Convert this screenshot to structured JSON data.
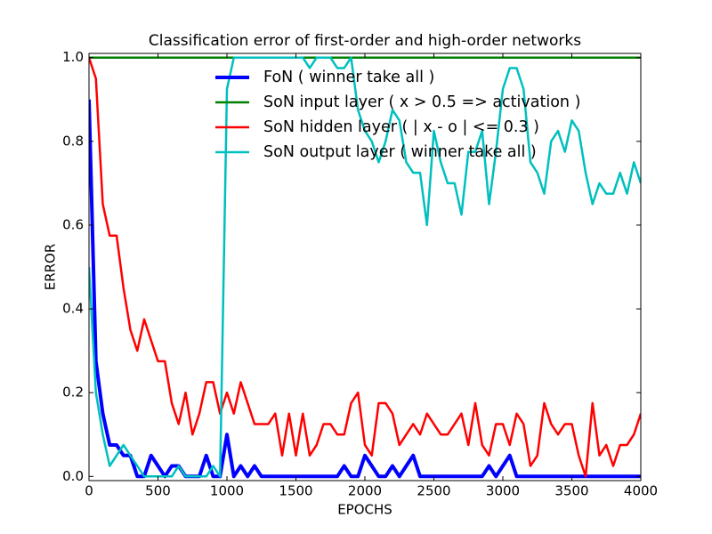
{
  "chart_data": {
    "type": "line",
    "title": "Classification error of first-order and high-order networks",
    "x_label": "EPOCHS",
    "y_label": "ERROR",
    "xlim": [
      0,
      4000
    ],
    "ylim": [
      -0.01,
      1.01
    ],
    "xticks": [
      0,
      500,
      1000,
      1500,
      2000,
      2500,
      3000,
      3500,
      4000
    ],
    "yticks": [
      {
        "value": 0,
        "label": "0.0"
      },
      0.2,
      0.4,
      0.6,
      0.8,
      {
        "value": 1,
        "label": "1.0"
      }
    ],
    "legend_position": "upper right",
    "x": [
      0,
      50,
      100,
      150,
      200,
      250,
      300,
      350,
      400,
      450,
      500,
      550,
      600,
      650,
      700,
      750,
      800,
      850,
      900,
      950,
      1000,
      1050,
      1100,
      1150,
      1200,
      1250,
      1300,
      1350,
      1400,
      1450,
      1500,
      1550,
      1600,
      1650,
      1700,
      1750,
      1800,
      1850,
      1900,
      1950,
      2000,
      2050,
      2100,
      2150,
      2200,
      2250,
      2300,
      2350,
      2400,
      2450,
      2500,
      2550,
      2600,
      2650,
      2700,
      2750,
      2800,
      2850,
      2900,
      2950,
      3000,
      3050,
      3100,
      3150,
      3200,
      3250,
      3300,
      3350,
      3400,
      3450,
      3500,
      3550,
      3600,
      3650,
      3700,
      3750,
      3800,
      3850,
      3900,
      3950,
      4000
    ],
    "series": [
      {
        "name": "FoN ( winner take all )",
        "color": "#0000ff",
        "width": 4,
        "values": [
          0.9,
          0.275,
          0.15,
          0.075,
          0.075,
          0.05,
          0.05,
          0,
          0,
          0.05,
          0.025,
          0,
          0.025,
          0.025,
          0,
          0,
          0,
          0.05,
          0,
          0,
          0.1,
          0,
          0.025,
          0,
          0.025,
          0,
          0,
          0,
          0,
          0,
          0,
          0,
          0,
          0,
          0,
          0,
          0,
          0.025,
          0,
          0,
          0.05,
          0.025,
          0,
          0,
          0.025,
          0,
          0.025,
          0.05,
          0,
          0,
          0,
          0,
          0,
          0,
          0,
          0,
          0,
          0,
          0.025,
          0,
          0.025,
          0.05,
          0,
          0,
          0,
          0,
          0,
          0,
          0,
          0,
          0,
          0,
          0,
          0,
          0,
          0,
          0,
          0,
          0,
          0,
          0
        ]
      },
      {
        "name": "SoN input layer ( x > 0.5 => activation )",
        "color": "#008000",
        "width": 2.5,
        "values": [
          1,
          1,
          1,
          1,
          1,
          1,
          1,
          1,
          1,
          1,
          1,
          1,
          1,
          1,
          1,
          1,
          1,
          1,
          1,
          1,
          1,
          1,
          1,
          1,
          1,
          1,
          1,
          1,
          1,
          1,
          1,
          1,
          1,
          1,
          1,
          1,
          1,
          1,
          1,
          1,
          1,
          1,
          1,
          1,
          1,
          1,
          1,
          1,
          1,
          1,
          1,
          1,
          1,
          1,
          1,
          1,
          1,
          1,
          1,
          1,
          1,
          1,
          1,
          1,
          1,
          1,
          1,
          1,
          1,
          1,
          1,
          1,
          1,
          1,
          1,
          1,
          1,
          1,
          1,
          1,
          1
        ]
      },
      {
        "name": "SoN hidden layer ( | x - o | <= 0.3 )",
        "color": "#ff0000",
        "width": 2.5,
        "values": [
          1.0,
          0.95,
          0.65,
          0.575,
          0.575,
          0.45,
          0.35,
          0.3,
          0.375,
          0.325,
          0.275,
          0.275,
          0.175,
          0.125,
          0.2,
          0.1,
          0.15,
          0.225,
          0.225,
          0.15,
          0.2,
          0.15,
          0.225,
          0.175,
          0.125,
          0.125,
          0.125,
          0.15,
          0.05,
          0.15,
          0.05,
          0.15,
          0.05,
          0.075,
          0.125,
          0.125,
          0.1,
          0.1,
          0.175,
          0.2,
          0.075,
          0.05,
          0.175,
          0.175,
          0.15,
          0.075,
          0.1,
          0.125,
          0.1,
          0.15,
          0.125,
          0.1,
          0.1,
          0.125,
          0.15,
          0.075,
          0.175,
          0.075,
          0.05,
          0.125,
          0.125,
          0.075,
          0.15,
          0.125,
          0.025,
          0.05,
          0.175,
          0.125,
          0.1,
          0.125,
          0.125,
          0.05,
          0,
          0.175,
          0.05,
          0.075,
          0.025,
          0.075,
          0.075,
          0.1,
          0.15
        ]
      },
      {
        "name": "SoN output layer ( winner take all )",
        "color": "#00bfbf",
        "width": 2.5,
        "values": [
          0.5,
          0.2,
          0.1,
          0.025,
          0.05,
          0.075,
          0.05,
          0.025,
          0,
          0,
          0,
          0,
          0,
          0.025,
          0,
          0,
          0,
          0,
          0.025,
          0,
          0.925,
          1,
          1,
          1,
          1,
          1,
          1,
          1,
          1,
          1,
          1,
          1,
          0.975,
          1,
          1,
          1,
          0.975,
          0.975,
          1,
          0.875,
          0.825,
          0.8,
          0.75,
          0.8,
          0.875,
          0.85,
          0.75,
          0.725,
          0.725,
          0.6,
          0.825,
          0.75,
          0.7,
          0.7,
          0.625,
          0.775,
          0.775,
          0.825,
          0.65,
          0.775,
          0.925,
          0.975,
          0.975,
          0.925,
          0.75,
          0.725,
          0.675,
          0.8,
          0.825,
          0.775,
          0.85,
          0.825,
          0.725,
          0.65,
          0.7,
          0.675,
          0.675,
          0.725,
          0.675,
          0.75,
          0.7
        ]
      }
    ]
  }
}
